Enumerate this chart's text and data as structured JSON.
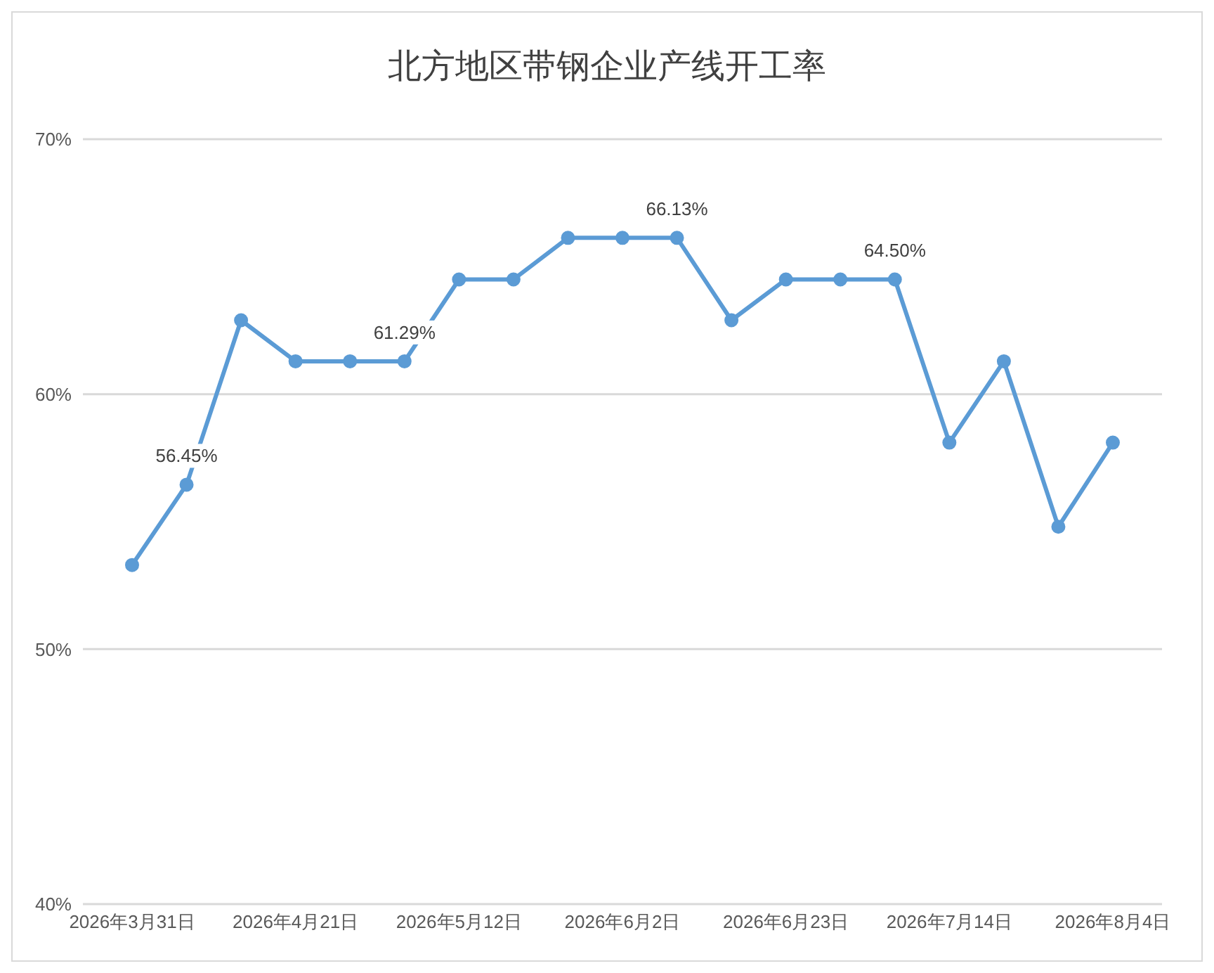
{
  "chart_data": {
    "type": "line",
    "title": "北方地区带钢企业产线开工率",
    "categories": [
      "2026年3月31日",
      null,
      null,
      "2026年4月21日",
      null,
      null,
      "2026年5月12日",
      null,
      null,
      "2026年6月2日",
      null,
      null,
      "2026年6月23日",
      null,
      null,
      "2026年7月14日",
      null,
      null,
      "2026年8月4日"
    ],
    "series": [
      {
        "color": "#5b9bd5",
        "values": [
          53.3,
          56.45,
          62.9,
          61.29,
          61.29,
          61.29,
          64.5,
          64.5,
          66.13,
          66.13,
          66.13,
          62.9,
          64.5,
          64.5,
          64.5,
          58.1,
          61.29,
          54.8,
          58.1
        ],
        "value_labels": [
          null,
          "56.45%",
          null,
          null,
          null,
          "61.29%",
          null,
          null,
          null,
          null,
          "66.13%",
          null,
          null,
          null,
          "64.50%",
          null,
          null,
          null,
          null
        ]
      }
    ],
    "ylim": [
      40,
      70
    ],
    "yticks": [
      {
        "value": 40,
        "label": "40%"
      },
      {
        "value": 50,
        "label": "50%"
      },
      {
        "value": 60,
        "label": "60%"
      },
      {
        "value": 70,
        "label": "70%"
      }
    ],
    "grid": "y",
    "marker": "circle",
    "line_style": "solid"
  }
}
